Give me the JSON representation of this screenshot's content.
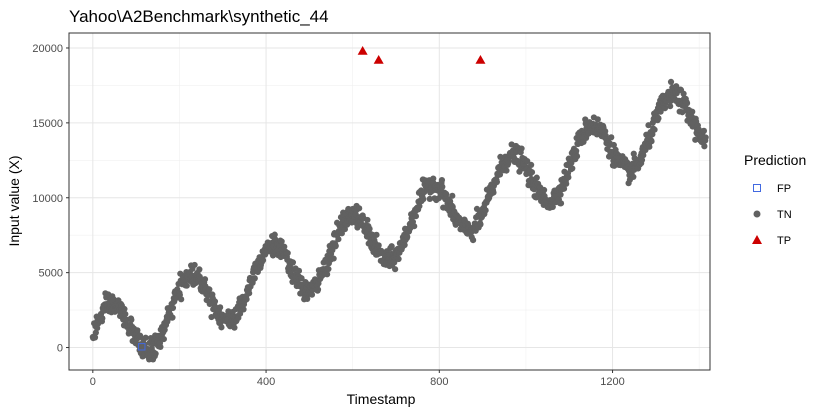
{
  "chart_data": {
    "type": "scatter",
    "title": "Yahoo\\A2Benchmark\\synthetic_44",
    "xlabel": "Timestamp",
    "ylabel": "Input value (X)",
    "xlim": [
      -55,
      1425
    ],
    "ylim": [
      -1500,
      21000
    ],
    "x_ticks": [
      0,
      400,
      800,
      1200
    ],
    "y_ticks": [
      0,
      5000,
      10000,
      15000,
      20000
    ],
    "x_tick_labels": [
      "0",
      "400",
      "800",
      "1200"
    ],
    "y_tick_labels": [
      "0",
      "5000",
      "10000",
      "15000",
      "20000"
    ],
    "grid": true,
    "legend": {
      "title": "Prediction",
      "position": "right",
      "entries": [
        {
          "label": "FP",
          "color": "#4169e1",
          "shape": "open-square"
        },
        {
          "label": "TN",
          "color": "#616161",
          "shape": "filled-circle"
        },
        {
          "label": "TP",
          "color": "#cc0000",
          "shape": "filled-triangle"
        }
      ]
    },
    "series": [
      {
        "name": "TN",
        "color": "#616161",
        "shape": "filled-circle",
        "trend": {
          "base": 400,
          "slope": 10.8,
          "amplitude": 2000,
          "period": 185,
          "peak_at": 40,
          "noise": 350
        },
        "x_range": [
          0,
          1415
        ],
        "step": 1,
        "sample_points": [
          {
            "x": 0,
            "y": 400
          },
          {
            "x": 40,
            "y": 2300
          },
          {
            "x": 130,
            "y": -300
          },
          {
            "x": 225,
            "y": 4300
          },
          {
            "x": 320,
            "y": 1800
          },
          {
            "x": 410,
            "y": 6300
          },
          {
            "x": 510,
            "y": 4200
          },
          {
            "x": 595,
            "y": 7700
          },
          {
            "x": 690,
            "y": 6000
          },
          {
            "x": 780,
            "y": 9800
          },
          {
            "x": 880,
            "y": 7800
          },
          {
            "x": 965,
            "y": 11500
          },
          {
            "x": 1060,
            "y": 9800
          },
          {
            "x": 1150,
            "y": 13700
          },
          {
            "x": 1250,
            "y": 11800
          },
          {
            "x": 1335,
            "y": 15600
          },
          {
            "x": 1415,
            "y": 13800
          }
        ]
      },
      {
        "name": "FP",
        "color": "#4169e1",
        "shape": "open-square",
        "points": [
          {
            "x": 113,
            "y": 50
          }
        ]
      },
      {
        "name": "TP",
        "color": "#cc0000",
        "shape": "filled-triangle",
        "points": [
          {
            "x": 623,
            "y": 19800
          },
          {
            "x": 660,
            "y": 19200
          },
          {
            "x": 895,
            "y": 19200
          }
        ]
      }
    ]
  }
}
